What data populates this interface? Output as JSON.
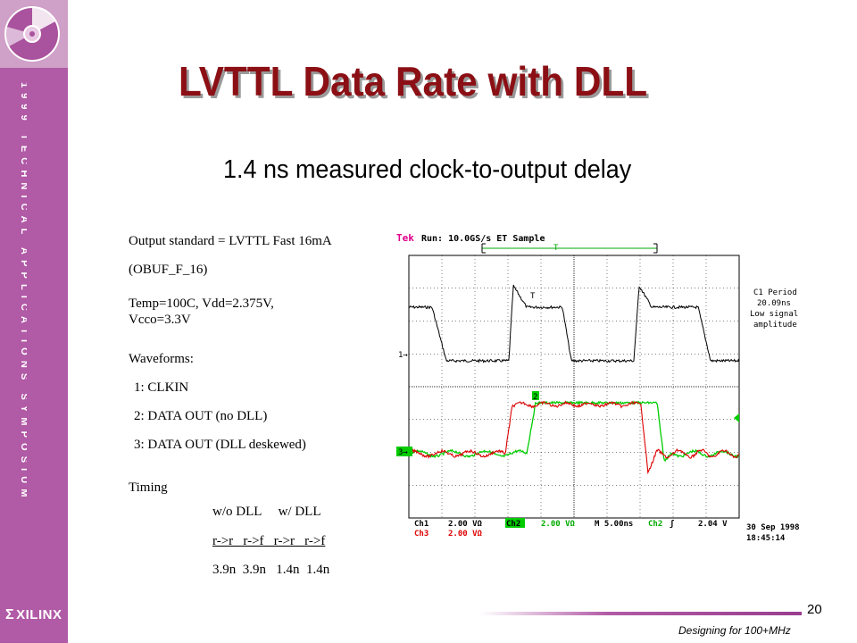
{
  "slide": {
    "title": "LVTTL Data Rate with DLL",
    "subtitle": "1.4 ns measured clock-to-output delay",
    "page_number": "20",
    "footer": "Designing for 100+MHz"
  },
  "sidebar": {
    "symposium_text": "1999 TECHNICAL APPLICATIONS SYMPOSIUM",
    "brand": "XILINX",
    "brand_mark": "Σ",
    "colors": {
      "sidebar": "#b15aa6",
      "logo_box": "#cfa0c8"
    }
  },
  "notes": {
    "output_standard": "Output standard = LVTTL Fast 16mA",
    "buffer": "(OBUF_F_16)",
    "conditions_1": "Temp=100C, Vdd=2.375V,",
    "conditions_2": "Vcco=3.3V",
    "waveforms_label": "Waveforms:",
    "waveforms": [
      "1: CLKIN",
      "2: DATA OUT (no DLL)",
      "3: DATA OUT (DLL deskewed)"
    ],
    "timing_label": "Timing",
    "timing_groups": "w/o DLL     w/ DLL",
    "timing_headers": "r->r   r->f   r->r   r->f",
    "timing_values": "3.9n  3.9n   1.4n  1.4n"
  },
  "scope": {
    "brand": "Tek",
    "run_status": "Run: 10.0GS/s ET Sample",
    "trigger_marker": "T",
    "measurement_1": "C1 Period",
    "measurement_2": "20.09ns",
    "measurement_3": "Low signal",
    "measurement_4": "amplitude",
    "ch1_marker": "1→",
    "ch3_marker": "3→",
    "ch2_marker": "2",
    "ch1_setting": "Ch1",
    "ch1_value": "2.00 VΩ",
    "ch3_setting": "Ch3",
    "ch3_value": "2.00 VΩ",
    "ch2_setting": "Ch2",
    "ch2_value": "2.00 VΩ",
    "timebase": "M 5.00ns",
    "trigger_source": "Ch2",
    "trigger_symbol": "ʃ",
    "trigger_level": "2.04 V",
    "date": "30 Sep 1998",
    "time": "18:45:14",
    "colors": {
      "ch1": "#000000",
      "ch2": "#00cc00",
      "ch3": "#dd0000",
      "grid": "#000000",
      "brand": "#e0008c"
    }
  }
}
